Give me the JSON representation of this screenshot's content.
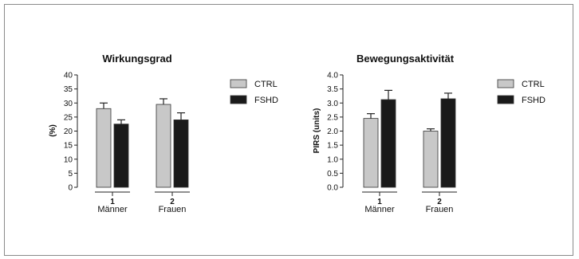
{
  "colors": {
    "ctrl": "#c8c8c8",
    "fshd": "#1a1a1a",
    "axis": "#222222"
  },
  "chart_data": [
    {
      "type": "bar",
      "title": "Wirkungsgrad",
      "ylabel": "(%)",
      "xlabel": "",
      "ylim": [
        0,
        40
      ],
      "yticks": [
        "0",
        "5",
        "10",
        "15",
        "20",
        "25",
        "30",
        "35",
        "40"
      ],
      "categories": [
        {
          "number": "1",
          "label": "Männer"
        },
        {
          "number": "2",
          "label": "Frauen"
        }
      ],
      "series": [
        {
          "name": "CTRL",
          "values": [
            28,
            29.5
          ],
          "errors": [
            2,
            2
          ]
        },
        {
          "name": "FSHD",
          "values": [
            22.5,
            24
          ],
          "errors": [
            1.5,
            2.5
          ]
        }
      ],
      "legend": "right"
    },
    {
      "type": "bar",
      "title": "Bewegungsaktivität",
      "ylabel": "PIRS (units)",
      "xlabel": "",
      "ylim": [
        0,
        4.0
      ],
      "yticks": [
        "0.0",
        "0.5",
        "1.0",
        "1.5",
        "2.0",
        "2.5",
        "3.0",
        "3.5",
        "4.0"
      ],
      "categories": [
        {
          "number": "1",
          "label": "Männer"
        },
        {
          "number": "2",
          "label": "Frauen"
        }
      ],
      "series": [
        {
          "name": "CTRL",
          "values": [
            2.45,
            2.0
          ],
          "errors": [
            0.17,
            0.08
          ]
        },
        {
          "name": "FSHD",
          "values": [
            3.12,
            3.15
          ],
          "errors": [
            0.33,
            0.2
          ]
        }
      ],
      "legend": "right"
    }
  ]
}
